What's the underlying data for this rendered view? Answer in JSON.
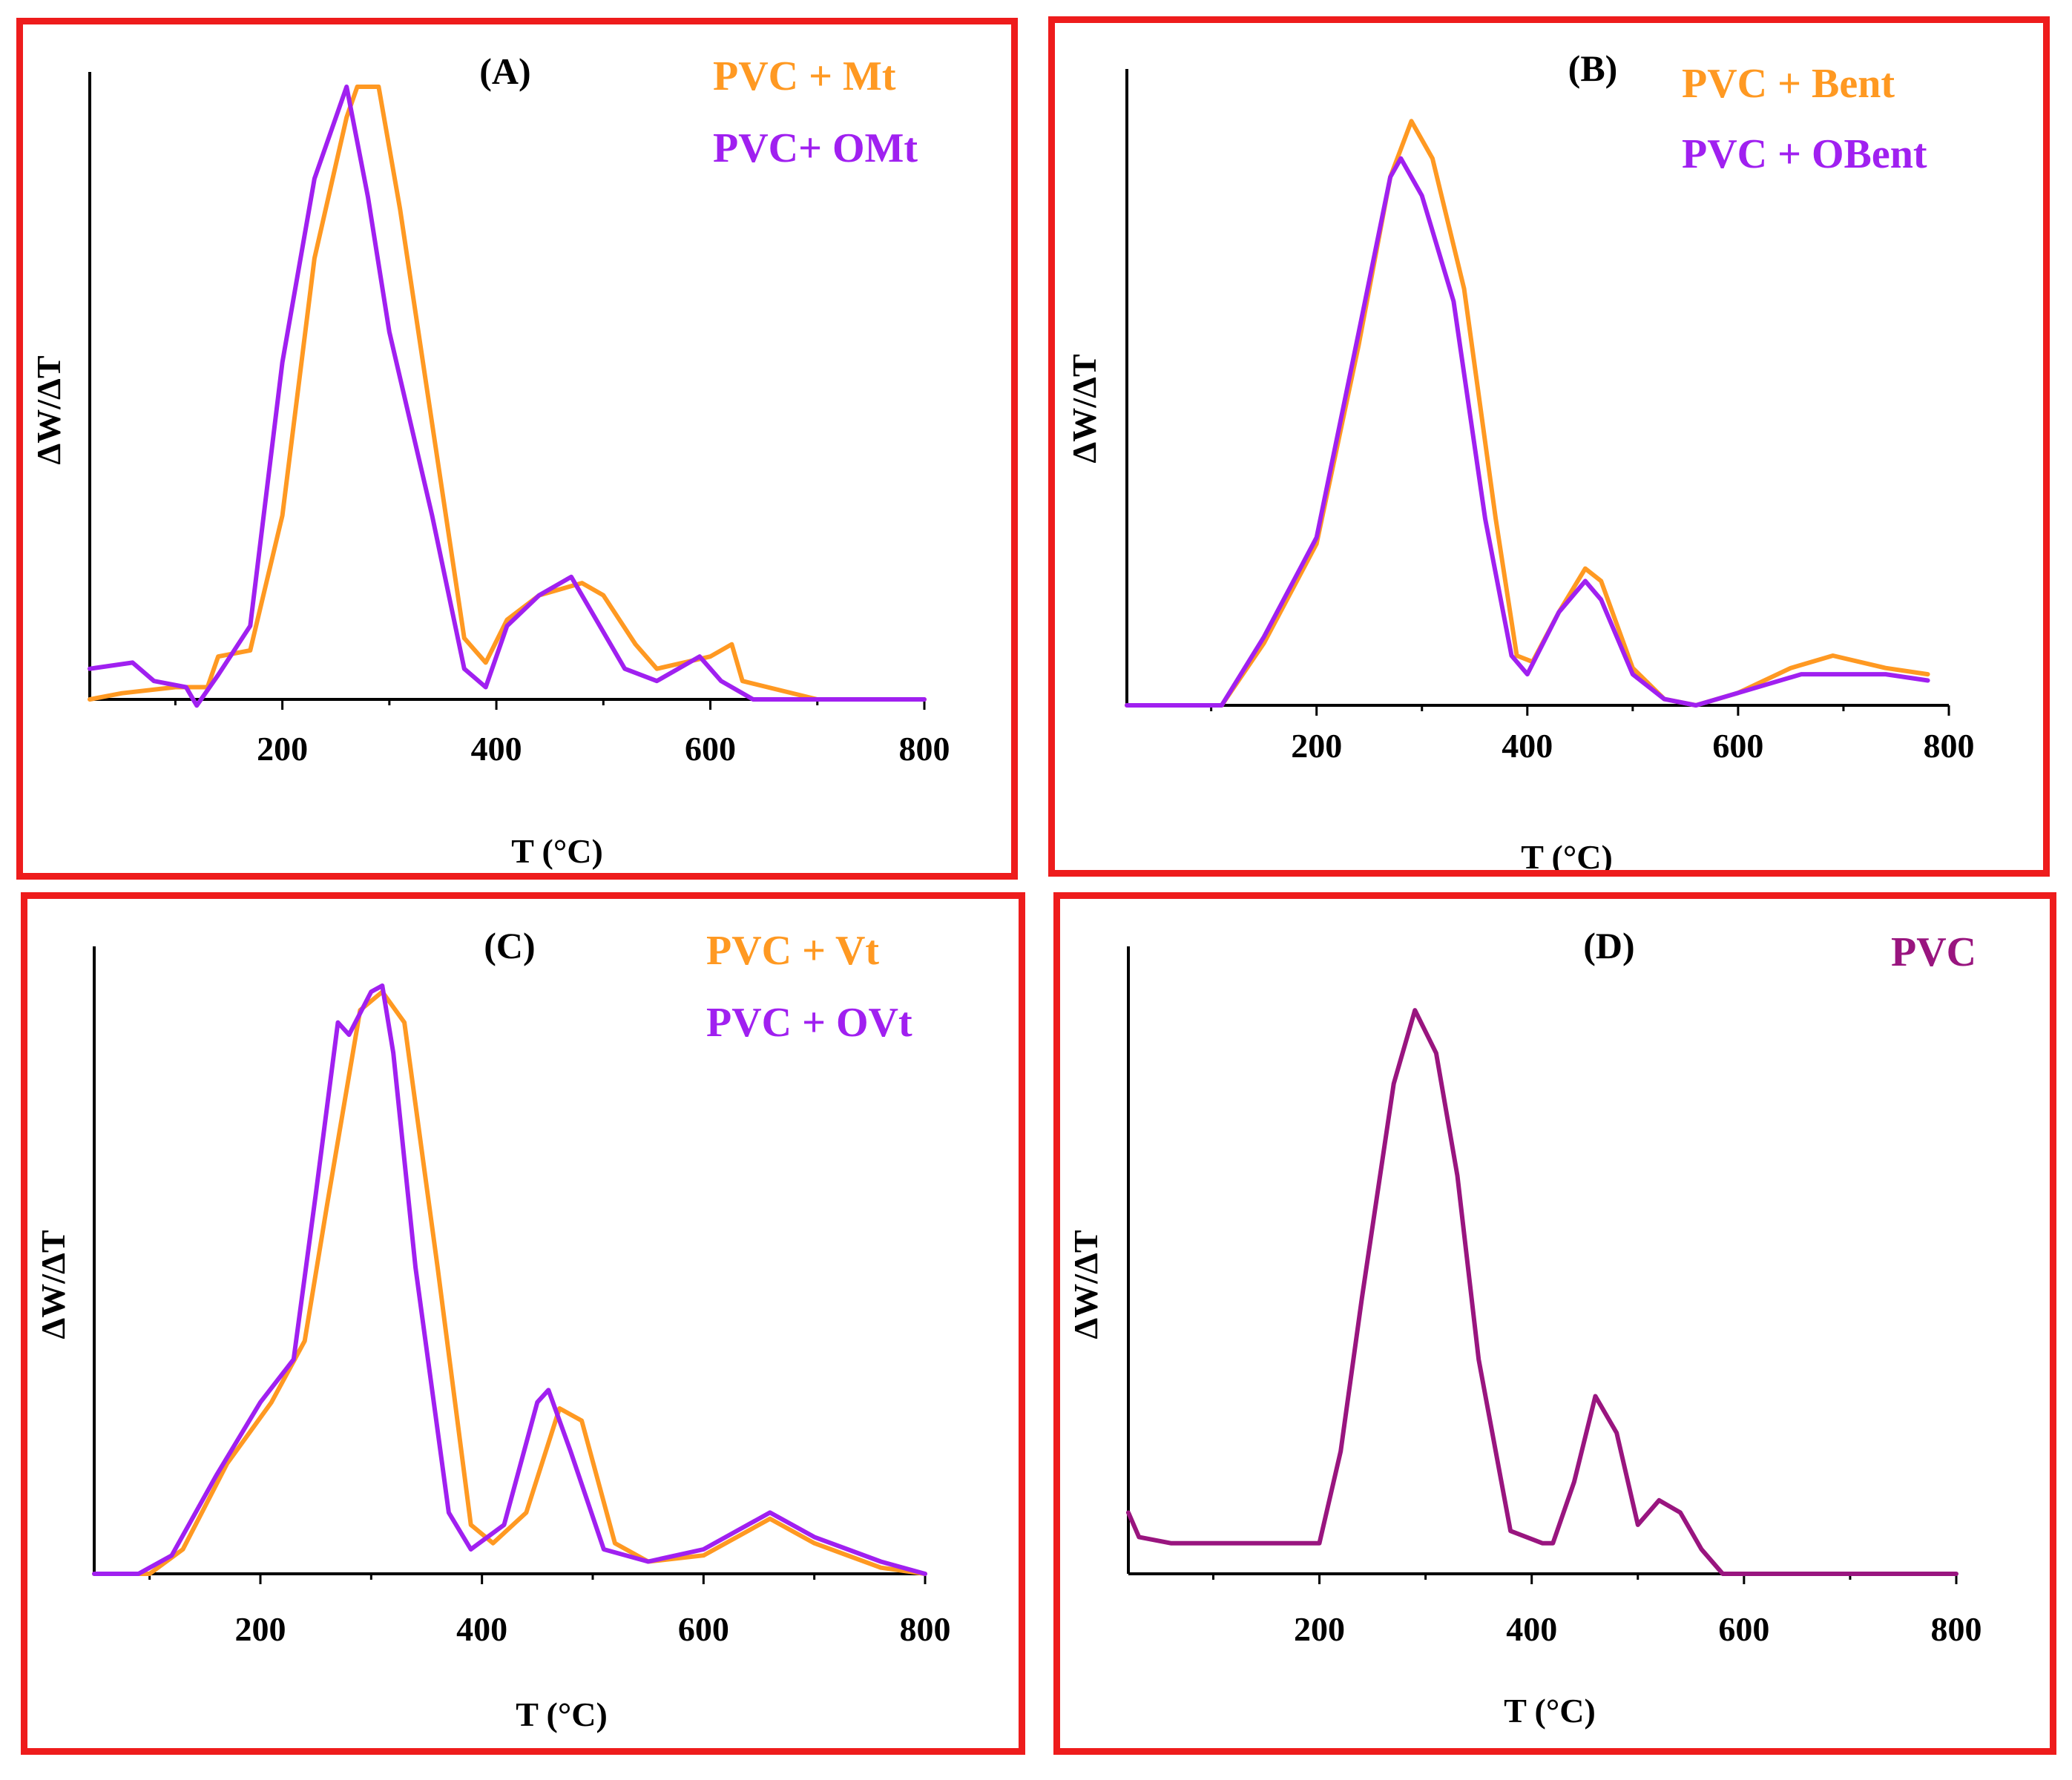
{
  "figure": {
    "colors": {
      "frame": "#ee1c1c",
      "orange": "#ff9922",
      "violet": "#a020f0",
      "pvc": "#99157f"
    }
  },
  "chart_data": [
    {
      "id": "A",
      "type": "line",
      "panel_label": "(A)",
      "xlabel": "T (°C)",
      "ylabel": "ΔW/ΔT",
      "xlim": [
        20,
        800
      ],
      "ylim": [
        0,
        100
      ],
      "xticks": [
        200,
        400,
        600,
        800
      ],
      "tick_labels": [
        "200",
        "400",
        "600",
        "800"
      ],
      "series": [
        {
          "name": "PVC + Mt",
          "color": "#ff9922",
          "points": [
            [
              20,
              0
            ],
            [
              50,
              1
            ],
            [
              100,
              2
            ],
            [
              130,
              2
            ],
            [
              140,
              7
            ],
            [
              170,
              8
            ],
            [
              200,
              30
            ],
            [
              230,
              72
            ],
            [
              260,
              95
            ],
            [
              270,
              100
            ],
            [
              290,
              100
            ],
            [
              310,
              80
            ],
            [
              340,
              45
            ],
            [
              370,
              10
            ],
            [
              390,
              6
            ],
            [
              410,
              13
            ],
            [
              440,
              17
            ],
            [
              480,
              19
            ],
            [
              500,
              17
            ],
            [
              530,
              9
            ],
            [
              550,
              5
            ],
            [
              600,
              7
            ],
            [
              620,
              9
            ],
            [
              630,
              3
            ],
            [
              700,
              0
            ],
            [
              800,
              0
            ]
          ]
        },
        {
          "name": "PVC+ OMt",
          "color": "#a020f0",
          "points": [
            [
              20,
              5
            ],
            [
              60,
              6
            ],
            [
              80,
              3
            ],
            [
              110,
              2
            ],
            [
              120,
              -1
            ],
            [
              140,
              4
            ],
            [
              170,
              12
            ],
            [
              200,
              55
            ],
            [
              230,
              85
            ],
            [
              260,
              100
            ],
            [
              280,
              82
            ],
            [
              300,
              60
            ],
            [
              340,
              30
            ],
            [
              370,
              5
            ],
            [
              390,
              2
            ],
            [
              410,
              12
            ],
            [
              440,
              17
            ],
            [
              470,
              20
            ],
            [
              490,
              14
            ],
            [
              520,
              5
            ],
            [
              550,
              3
            ],
            [
              590,
              7
            ],
            [
              610,
              3
            ],
            [
              640,
              0
            ],
            [
              800,
              0
            ]
          ]
        }
      ]
    },
    {
      "id": "B",
      "type": "line",
      "panel_label": "(B)",
      "xlabel": "T (°C)",
      "ylabel": "ΔW/ΔT",
      "xlim": [
        20,
        800
      ],
      "ylim": [
        0,
        100
      ],
      "xticks": [
        200,
        400,
        600,
        800
      ],
      "tick_labels": [
        "200",
        "400",
        "600",
        "800"
      ],
      "series": [
        {
          "name": "PVC + Bent",
          "color": "#ff9922",
          "points": [
            [
              20,
              0
            ],
            [
              110,
              0
            ],
            [
              150,
              10
            ],
            [
              200,
              26
            ],
            [
              240,
              58
            ],
            [
              270,
              85
            ],
            [
              290,
              94
            ],
            [
              310,
              88
            ],
            [
              340,
              67
            ],
            [
              370,
              30
            ],
            [
              390,
              8
            ],
            [
              405,
              7
            ],
            [
              430,
              15
            ],
            [
              455,
              22
            ],
            [
              470,
              20
            ],
            [
              500,
              6
            ],
            [
              530,
              1
            ],
            [
              560,
              0
            ],
            [
              600,
              2
            ],
            [
              650,
              6
            ],
            [
              690,
              8
            ],
            [
              740,
              6
            ],
            [
              780,
              5
            ]
          ]
        },
        {
          "name": "PVC + OBent",
          "color": "#a020f0",
          "points": [
            [
              20,
              0
            ],
            [
              110,
              0
            ],
            [
              150,
              11
            ],
            [
              200,
              27
            ],
            [
              240,
              60
            ],
            [
              270,
              85
            ],
            [
              280,
              88
            ],
            [
              300,
              82
            ],
            [
              330,
              65
            ],
            [
              360,
              30
            ],
            [
              385,
              8
            ],
            [
              400,
              5
            ],
            [
              430,
              15
            ],
            [
              455,
              20
            ],
            [
              470,
              17
            ],
            [
              500,
              5
            ],
            [
              530,
              1
            ],
            [
              560,
              0
            ],
            [
              620,
              3
            ],
            [
              660,
              5
            ],
            [
              740,
              5
            ],
            [
              780,
              4
            ]
          ]
        }
      ]
    },
    {
      "id": "C",
      "type": "line",
      "panel_label": "(C)",
      "xlabel": "T (°C)",
      "ylabel": "ΔW/ΔT",
      "xlim": [
        50,
        800
      ],
      "ylim": [
        0,
        100
      ],
      "xticks": [
        200,
        400,
        600,
        800
      ],
      "tick_labels": [
        "200",
        "400",
        "600",
        "800"
      ],
      "series": [
        {
          "name": "PVC + Vt",
          "color": "#ff9922",
          "points": [
            [
              50,
              0
            ],
            [
              100,
              0
            ],
            [
              130,
              4
            ],
            [
              170,
              18
            ],
            [
              210,
              28
            ],
            [
              240,
              38
            ],
            [
              260,
              60
            ],
            [
              290,
              92
            ],
            [
              310,
              95
            ],
            [
              330,
              90
            ],
            [
              360,
              50
            ],
            [
              390,
              8
            ],
            [
              410,
              5
            ],
            [
              440,
              10
            ],
            [
              470,
              27
            ],
            [
              490,
              25
            ],
            [
              520,
              5
            ],
            [
              550,
              2
            ],
            [
              600,
              3
            ],
            [
              640,
              7
            ],
            [
              660,
              9
            ],
            [
              700,
              5
            ],
            [
              760,
              1
            ],
            [
              800,
              0
            ]
          ]
        },
        {
          "name": "PVC + OVt",
          "color": "#a020f0",
          "points": [
            [
              50,
              0
            ],
            [
              90,
              0
            ],
            [
              120,
              3
            ],
            [
              160,
              16
            ],
            [
              200,
              28
            ],
            [
              230,
              35
            ],
            [
              250,
              62
            ],
            [
              270,
              90
            ],
            [
              280,
              88
            ],
            [
              300,
              95
            ],
            [
              310,
              96
            ],
            [
              320,
              85
            ],
            [
              340,
              50
            ],
            [
              370,
              10
            ],
            [
              390,
              4
            ],
            [
              420,
              8
            ],
            [
              450,
              28
            ],
            [
              460,
              30
            ],
            [
              480,
              20
            ],
            [
              510,
              4
            ],
            [
              550,
              2
            ],
            [
              600,
              4
            ],
            [
              640,
              8
            ],
            [
              660,
              10
            ],
            [
              700,
              6
            ],
            [
              760,
              2
            ],
            [
              800,
              0
            ]
          ]
        }
      ]
    },
    {
      "id": "D",
      "type": "line",
      "panel_label": "(D)",
      "xlabel": "T (°C)",
      "ylabel": "ΔW/ΔT",
      "xlim": [
        20,
        800
      ],
      "ylim": [
        0,
        100
      ],
      "xticks": [
        200,
        400,
        600,
        800
      ],
      "tick_labels": [
        "200",
        "400",
        "600",
        "800"
      ],
      "series": [
        {
          "name": "PVC",
          "color": "#99157f",
          "points": [
            [
              20,
              10
            ],
            [
              30,
              6
            ],
            [
              60,
              5
            ],
            [
              100,
              5
            ],
            [
              200,
              5
            ],
            [
              220,
              20
            ],
            [
              240,
              45
            ],
            [
              270,
              80
            ],
            [
              290,
              92
            ],
            [
              310,
              85
            ],
            [
              330,
              65
            ],
            [
              350,
              35
            ],
            [
              380,
              7
            ],
            [
              410,
              5
            ],
            [
              420,
              5
            ],
            [
              440,
              15
            ],
            [
              460,
              29
            ],
            [
              480,
              23
            ],
            [
              500,
              8
            ],
            [
              520,
              12
            ],
            [
              540,
              10
            ],
            [
              560,
              4
            ],
            [
              580,
              0
            ],
            [
              600,
              0
            ],
            [
              800,
              0
            ]
          ]
        }
      ]
    }
  ]
}
